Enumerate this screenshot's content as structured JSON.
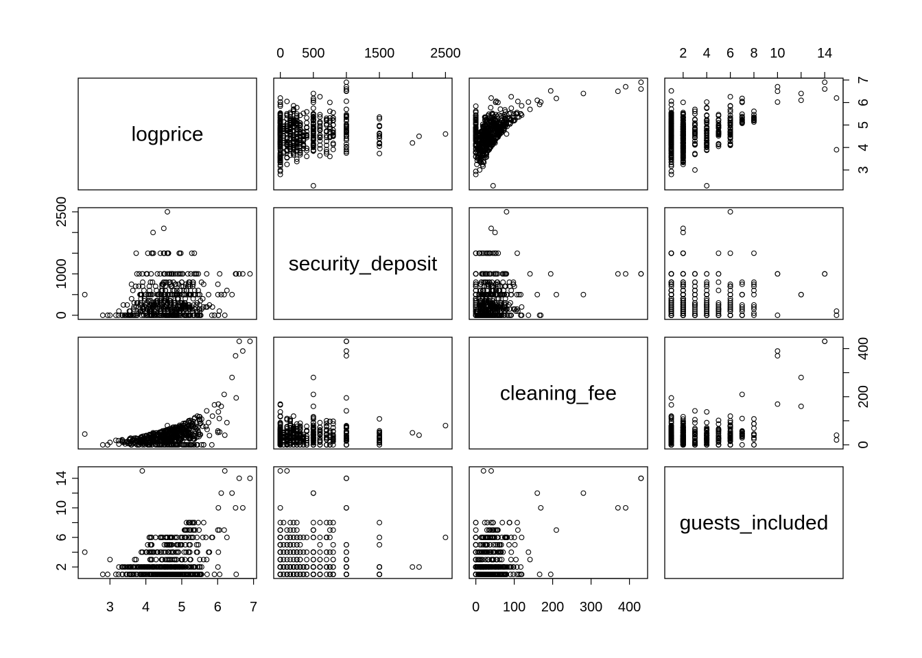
{
  "chart_data": {
    "type": "scatter",
    "subtype": "scatterplot-matrix",
    "variables": [
      "logprice",
      "security_deposit",
      "cleaning_fee",
      "guests_included"
    ],
    "axis_ranges": {
      "logprice": [
        2.3,
        6.9
      ],
      "security_deposit": [
        0,
        2500
      ],
      "cleaning_fee": [
        0,
        430
      ],
      "guests_included": [
        1,
        15
      ]
    },
    "tick_labels": {
      "logprice": [
        "3",
        "4",
        "5",
        "6",
        "7"
      ],
      "security_deposit": [
        "0",
        "500",
        "1500",
        "2500"
      ],
      "cleaning_fee": [
        "0",
        "100",
        "200",
        "300",
        "400"
      ],
      "guests_included": [
        "2",
        "4",
        "6",
        "8",
        "10",
        "14"
      ]
    },
    "tick_values": {
      "logprice": [
        3,
        4,
        5,
        6,
        7
      ],
      "security_deposit": [
        0,
        500,
        1000,
        1500,
        2000,
        2500
      ],
      "cleaning_fee": [
        0,
        100,
        200,
        300,
        400
      ],
      "guests_included": [
        2,
        4,
        6,
        8,
        10,
        12,
        14
      ]
    },
    "tick_label_values": {
      "logprice": [
        3,
        4,
        5,
        6,
        7
      ],
      "security_deposit": [
        0,
        500,
        1500,
        2500
      ],
      "cleaning_fee": [
        0,
        100,
        200,
        300,
        400
      ],
      "guests_included": [
        2,
        4,
        6,
        8,
        10,
        14
      ]
    },
    "left_tick_labels": {
      "security_deposit": [
        "0",
        "1000",
        "2500"
      ],
      "guests_included": [
        "2",
        "6",
        "10",
        "14"
      ]
    },
    "left_tick_label_values": {
      "security_deposit": [
        0,
        1000,
        2500
      ],
      "guests_included": [
        2,
        6,
        10,
        14
      ]
    },
    "right_tick_labels": {
      "logprice": [
        "3",
        "4",
        "5",
        "6",
        "7"
      ],
      "cleaning_fee": [
        "0",
        "200",
        "400"
      ]
    },
    "right_tick_label_values": {
      "logprice": [
        3,
        4,
        5,
        6,
        7
      ],
      "cleaning_fee": [
        0,
        200,
        400
      ]
    },
    "n_points": 520,
    "observations": [
      {
        "logprice": 2.3,
        "security_deposit": 500,
        "cleaning_fee": 45,
        "guests_included": 4
      },
      {
        "logprice": 3.9,
        "security_deposit": 100,
        "cleaning_fee": 20,
        "guests_included": 15
      },
      {
        "logprice": 6.6,
        "security_deposit": 1000,
        "cleaning_fee": 430,
        "guests_included": 14
      },
      {
        "logprice": 6.2,
        "security_deposit": 0,
        "cleaning_fee": 40,
        "guests_included": 15
      },
      {
        "logprice": 4.6,
        "security_deposit": 2500,
        "cleaning_fee": 80,
        "guests_included": 6
      },
      {
        "logprice": 4.2,
        "security_deposit": 2000,
        "cleaning_fee": 50,
        "guests_included": 2
      },
      {
        "logprice": 4.5,
        "security_deposit": 2100,
        "cleaning_fee": 40,
        "guests_included": 2
      },
      {
        "logprice": 6.9,
        "security_deposit": 1000,
        "cleaning_fee": 430,
        "guests_included": 14
      },
      {
        "logprice": 6.7,
        "security_deposit": 1000,
        "cleaning_fee": 390,
        "guests_included": 10
      },
      {
        "logprice": 6.5,
        "security_deposit": 1000,
        "cleaning_fee": 370,
        "guests_included": 10
      },
      {
        "logprice": 6.4,
        "security_deposit": 500,
        "cleaning_fee": 280,
        "guests_included": 12
      },
      {
        "logprice": 6.1,
        "security_deposit": 500,
        "cleaning_fee": 160,
        "guests_included": 12
      },
      {
        "logprice": 2.8,
        "security_deposit": 0,
        "cleaning_fee": 0,
        "guests_included": 1
      },
      {
        "logprice": 3.0,
        "security_deposit": 0,
        "cleaning_fee": 10,
        "guests_included": 3
      }
    ]
  }
}
